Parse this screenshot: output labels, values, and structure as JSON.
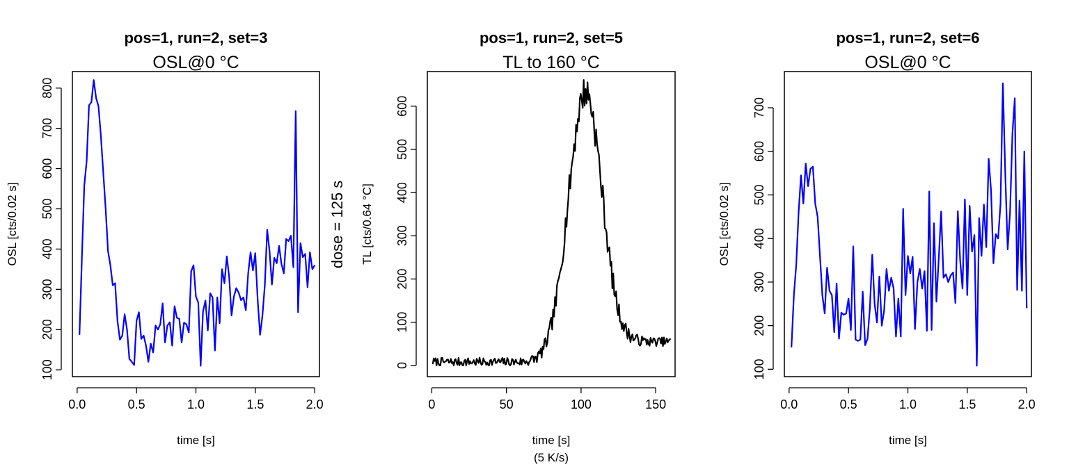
{
  "chart_data": [
    {
      "type": "line",
      "title": "pos=1, run=2, set=3",
      "subtitle": "OSL@0 °C",
      "xlabel": "time [s]",
      "xlabel2": "",
      "ylabel": "OSL [cts/0.02 s]",
      "color": "#0000ff",
      "xlim": [
        -0.04,
        2.04
      ],
      "ylim": [
        83,
        841
      ],
      "xticks": [
        0,
        0.5,
        1,
        1.5,
        2
      ],
      "xtick_labels": [
        "0.0",
        "0.5",
        "1.0",
        "1.5",
        "2.0"
      ],
      "yticks": [
        100,
        200,
        300,
        400,
        500,
        600,
        700,
        800
      ],
      "ytick_labels": [
        "100",
        "200",
        "300",
        "400",
        "500",
        "600",
        "700",
        "800"
      ],
      "x_start": 0.02,
      "x_step": 0.02,
      "values": [
        187,
        380,
        558,
        618,
        757,
        765,
        820,
        775,
        755,
        680,
        590,
        500,
        395,
        360,
        310,
        315,
        220,
        175,
        185,
        238,
        200,
        127,
        120,
        112,
        222,
        243,
        177,
        185,
        160,
        120,
        165,
        143,
        210,
        200,
        213,
        265,
        168,
        210,
        218,
        160,
        258,
        229,
        227,
        168,
        217,
        213,
        193,
        345,
        360,
        282,
        267,
        110,
        245,
        272,
        198,
        290,
        280,
        148,
        280,
        216,
        350,
        315,
        382,
        330,
        235,
        282,
        303,
        292,
        273,
        280,
        248,
        340,
        392,
        347,
        390,
        272,
        187,
        235,
        310,
        448,
        395,
        312,
        378,
        365,
        408,
        363,
        340,
        425,
        420,
        433,
        355,
        743,
        243,
        415,
        380,
        388,
        305,
        392,
        350,
        360
      ]
    },
    {
      "type": "line",
      "title": "pos=1, run=2, set=5",
      "subtitle": "TL to 160 °C",
      "xlabel": "time [s]",
      "xlabel2": "(5 K/s)",
      "ylabel": "TL [cts/0.64  °C]",
      "color": "#000000",
      "xlim": [
        -3,
        163
      ],
      "ylim": [
        -26,
        680
      ],
      "xticks": [
        0,
        50,
        100,
        150
      ],
      "xtick_labels": [
        "0",
        "50",
        "100",
        "150"
      ],
      "yticks": [
        0,
        100,
        200,
        300,
        400,
        500,
        600
      ],
      "ytick_labels": [
        "0",
        "100",
        "200",
        "300",
        "400",
        "500",
        "600"
      ],
      "gauss": {
        "x_start": 0.64,
        "x_end": 160,
        "n": 250,
        "base": 8,
        "tail_level": 55,
        "amp": 625,
        "center": 103,
        "sigma": 11.5,
        "noise": 10,
        "seed": 7
      }
    },
    {
      "type": "line",
      "title": "pos=1, run=2, set=6",
      "subtitle": "OSL@0 °C",
      "xlabel": "time [s]",
      "xlabel2": "",
      "ylabel": "OSL [cts/0.02 s]",
      "color": "#0000ff",
      "xlim": [
        -0.04,
        2.04
      ],
      "ylim": [
        83,
        783
      ],
      "xticks": [
        0,
        0.5,
        1,
        1.5,
        2
      ],
      "xtick_labels": [
        "0.0",
        "0.5",
        "1.0",
        "1.5",
        "2.0"
      ],
      "yticks": [
        100,
        200,
        300,
        400,
        500,
        600,
        700
      ],
      "ytick_labels": [
        "100",
        "200",
        "300",
        "400",
        "500",
        "600",
        "700"
      ],
      "x_start": 0.02,
      "x_step": 0.02,
      "values": [
        150,
        270,
        340,
        460,
        545,
        480,
        572,
        520,
        560,
        565,
        480,
        450,
        360,
        270,
        228,
        333,
        280,
        270,
        185,
        297,
        170,
        230,
        225,
        228,
        262,
        190,
        382,
        168,
        165,
        168,
        278,
        155,
        170,
        240,
        363,
        250,
        207,
        313,
        200,
        235,
        330,
        280,
        310,
        285,
        175,
        262,
        175,
        468,
        270,
        360,
        320,
        358,
        192,
        300,
        330,
        285,
        325,
        188,
        508,
        190,
        435,
        255,
        355,
        462,
        310,
        318,
        300,
        315,
        322,
        252,
        463,
        350,
        285,
        490,
        270,
        475,
        370,
        408,
        108,
        447,
        360,
        478,
        380,
        583,
        510,
        343,
        410,
        400,
        480,
        756,
        545,
        375,
        460,
        640,
        722,
        282,
        487,
        280,
        600,
        240
      ]
    }
  ],
  "side_label": "dose = 125 s"
}
